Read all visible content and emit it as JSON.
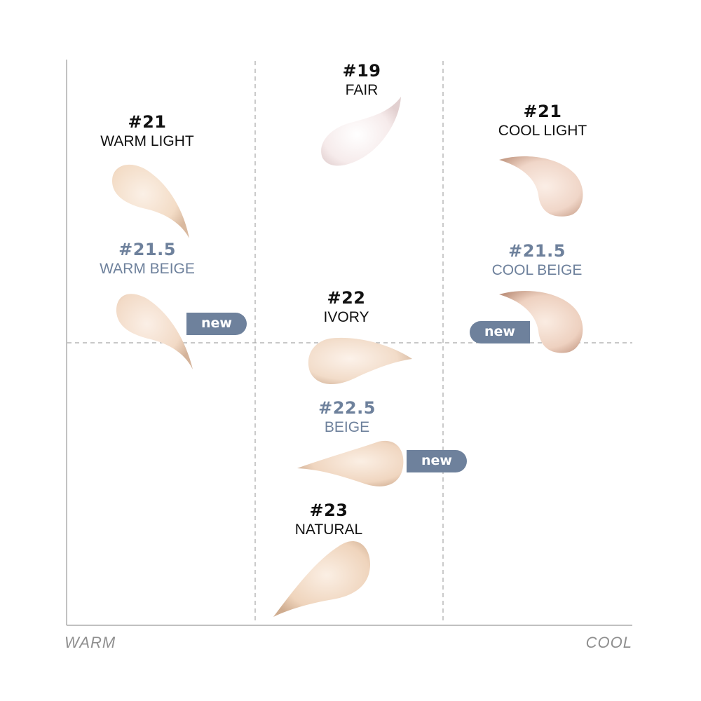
{
  "axis": {
    "left_label": "WARM",
    "right_label": "COOL"
  },
  "shades": [
    {
      "id": "fair",
      "number": "#19",
      "name": "FAIR",
      "is_new": false
    },
    {
      "id": "warm-light",
      "number": "#21",
      "name": "WARM LIGHT",
      "is_new": false
    },
    {
      "id": "cool-light",
      "number": "#21",
      "name": "COOL LIGHT",
      "is_new": false
    },
    {
      "id": "warm-beige",
      "number": "#21.5",
      "name": "WARM BEIGE",
      "is_new": true
    },
    {
      "id": "cool-beige",
      "number": "#21.5",
      "name": "COOL BEIGE",
      "is_new": true
    },
    {
      "id": "ivory",
      "number": "#22",
      "name": "IVORY",
      "is_new": false
    },
    {
      "id": "beige",
      "number": "#22.5",
      "name": "BEIGE",
      "is_new": true
    },
    {
      "id": "natural",
      "number": "#23",
      "name": "NATURAL",
      "is_new": false
    }
  ],
  "badge_label": "new",
  "colors": {
    "label_dark": "#111111",
    "label_new_shade": "#6e819c",
    "badge_bg": "#6e819c",
    "swatch_fair": "#f6ebeb",
    "swatch_warm_light": "#f3dcc6",
    "swatch_cool_light": "#f0d6c8",
    "swatch_warm_beige": "#f2dac6",
    "swatch_cool_beige": "#eed1c0",
    "swatch_ivory": "#f2dcc9",
    "swatch_beige": "#f0d6c0",
    "swatch_natural": "#efd4bc"
  }
}
